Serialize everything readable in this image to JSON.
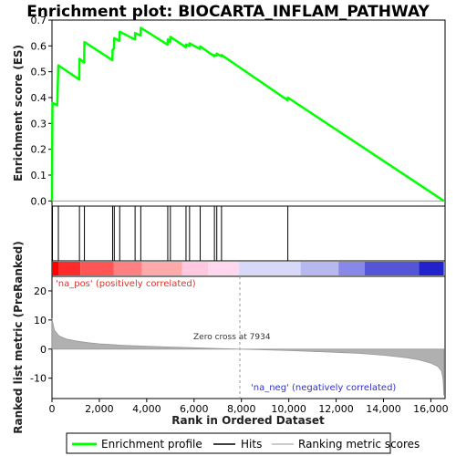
{
  "chart_data": {
    "type": "line",
    "title": "Enrichment plot: BIOCARTA_INFLAM_PATHWAY",
    "xlabel": "Rank in Ordered Dataset",
    "es_ylabel": "Enrichment score (ES)",
    "metric_ylabel": "Ranked list metric (PreRanked)",
    "x_range": [
      0,
      16600
    ],
    "x_ticks": [
      0,
      2000,
      4000,
      6000,
      8000,
      10000,
      12000,
      14000,
      16000
    ],
    "x_tick_labels": [
      "0",
      "2,000",
      "4,000",
      "6,000",
      "8,000",
      "10,000",
      "12,000",
      "14,000",
      "16,000"
    ],
    "es_ylim": [
      -0.02,
      0.7
    ],
    "es_ticks": [
      0.0,
      0.1,
      0.2,
      0.3,
      0.4,
      0.5,
      0.6,
      0.7
    ],
    "es_tick_labels": [
      "0.0",
      "0.1",
      "0.2",
      "0.3",
      "0.4",
      "0.5",
      "0.6",
      "0.7"
    ],
    "metric_ylim": [
      -17,
      25
    ],
    "metric_ticks": [
      20,
      10,
      0,
      -10
    ],
    "metric_tick_labels": [
      "20",
      "10",
      "0",
      "-10"
    ],
    "enrichment_profile": {
      "name": "Enrichment profile",
      "color": "#00ff00",
      "x": [
        0,
        20,
        120,
        220,
        270,
        1150,
        1160,
        1360,
        1370,
        2550,
        2560,
        2620,
        2630,
        2850,
        2860,
        3500,
        3510,
        3740,
        3750,
        4880,
        4890,
        4990,
        5000,
        5650,
        5660,
        5800,
        5810,
        6250,
        6260,
        6850,
        6860,
        6950,
        6960,
        7150,
        7160,
        9950,
        9960,
        16550
      ],
      "y": [
        0.0,
        0.38,
        0.375,
        0.37,
        0.525,
        0.47,
        0.55,
        0.535,
        0.615,
        0.545,
        0.585,
        0.59,
        0.63,
        0.62,
        0.655,
        0.625,
        0.65,
        0.64,
        0.67,
        0.605,
        0.625,
        0.615,
        0.635,
        0.595,
        0.605,
        0.6,
        0.61,
        0.588,
        0.598,
        0.56,
        0.565,
        0.562,
        0.57,
        0.56,
        0.565,
        0.39,
        0.4,
        0.0
      ]
    },
    "hits": {
      "name": "Hits",
      "x": [
        20,
        270,
        1160,
        1370,
        2560,
        2630,
        2860,
        3510,
        3750,
        4890,
        5000,
        5660,
        5810,
        6260,
        6860,
        6960,
        7160,
        9960
      ]
    },
    "ranking_metric": {
      "name": "Ranking metric scores",
      "x": [
        0,
        100,
        300,
        600,
        1000,
        1500,
        2000,
        3000,
        4000,
        5000,
        6000,
        7000,
        7934,
        9000,
        10000,
        11000,
        12000,
        13000,
        14000,
        15000,
        15500,
        16000,
        16300,
        16450,
        16520,
        16550
      ],
      "y": [
        10.5,
        6.5,
        4.5,
        3.5,
        2.8,
        2.2,
        1.8,
        1.3,
        0.95,
        0.7,
        0.45,
        0.2,
        0.0,
        -0.25,
        -0.5,
        -0.8,
        -1.1,
        -1.5,
        -2.1,
        -3.0,
        -3.7,
        -4.8,
        -6.0,
        -7.5,
        -10.5,
        -16.0
      ]
    },
    "zero_cross_x": 7934,
    "color_bar_colors": [
      "#ff0000",
      "#ff2a2a",
      "#ff5555",
      "#ff8080",
      "#ffaaaa",
      "#ffc8e0",
      "#ffd8f0",
      "#d8d8f8",
      "#b8b8f0",
      "#8888e8",
      "#5555d8",
      "#2222cc",
      "#0000bb"
    ],
    "color_bar_breaks": [
      0,
      300,
      1200,
      2600,
      3800,
      5500,
      6600,
      7900,
      10500,
      12100,
      13200,
      15500,
      16550
    ]
  },
  "annotations": {
    "pos_label": "'na_pos' (positively correlated)",
    "neg_label": "'na_neg' (negatively correlated)",
    "zero_cross": "Zero cross at 7934"
  },
  "legend": {
    "enrichment": "Enrichment profile",
    "hits": "Hits",
    "ranking": "Ranking metric scores"
  }
}
